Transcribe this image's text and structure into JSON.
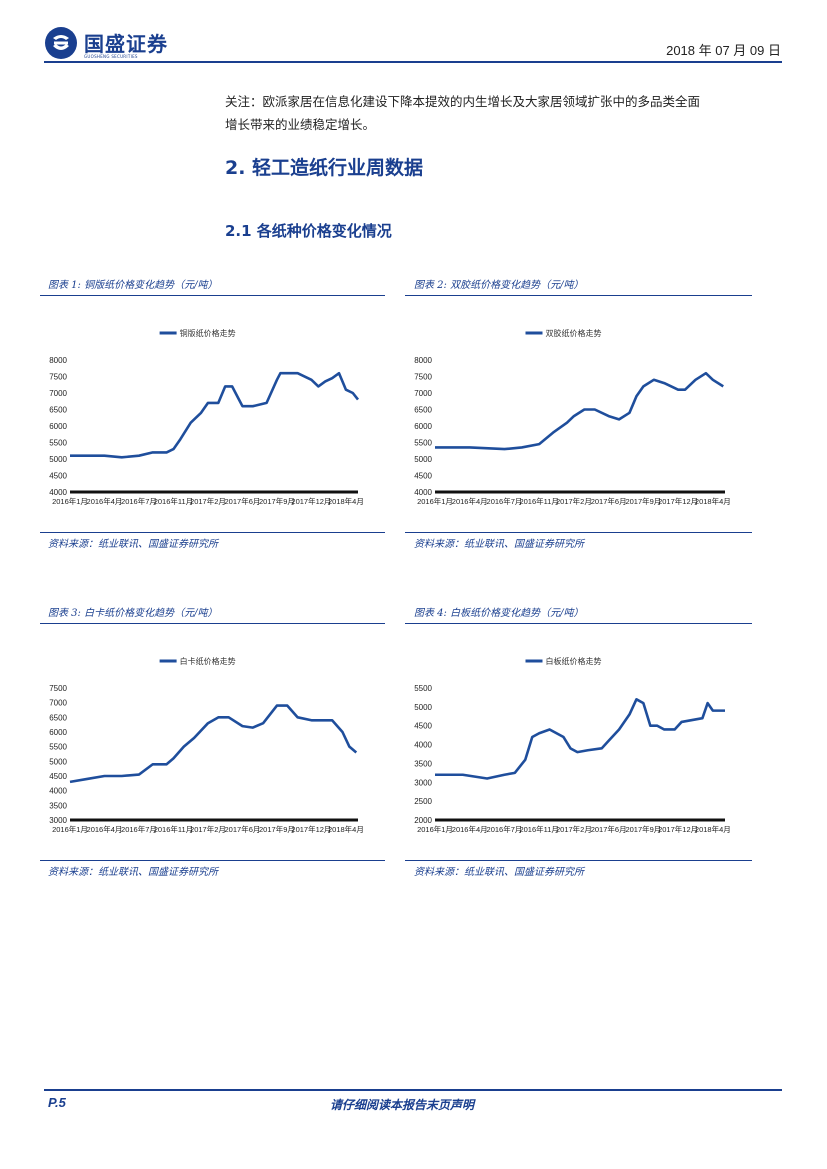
{
  "header": {
    "logo_text": "国盛证券",
    "logo_sub": "GUOSHENG SECURITIES",
    "date": "2018 年 07 月 09 日"
  },
  "intro": {
    "line1": "关注：欧派家居在信息化建设下降本提效的内生增长及大家居领域扩张中的多品类全面",
    "line2": "增长带来的业绩稳定增长。"
  },
  "section": {
    "title": "2.  轻工造纸行业周数据"
  },
  "subsection": {
    "title": "2.1 各纸种价格变化情况"
  },
  "footer": {
    "page": "P.5",
    "note": "请仔细阅读本报告末页声明"
  },
  "chart_data": [
    {
      "type": "line",
      "title": "图表 1:  铜版纸价格变化趋势（元/吨）",
      "legend": "铜版纸价格走势",
      "source": "资料来源：纸业联讯、国盛证券研究所",
      "categories": [
        "2016年1月",
        "2016年4月",
        "2016年7月",
        "2016年11月",
        "2017年2月",
        "2017年6月",
        "2017年9月",
        "2017年12月",
        "2018年4月"
      ],
      "ylim": [
        4000,
        8000
      ],
      "yticks": [
        4000,
        4500,
        5000,
        5500,
        6000,
        6500,
        7000,
        7500,
        8000
      ],
      "series": [
        {
          "name": "铜版纸价格走势",
          "x": [
            0,
            1,
            1.5,
            2,
            2.4,
            2.8,
            3,
            3.2,
            3.5,
            3.8,
            4,
            4.3,
            4.5,
            4.7,
            4.9,
            5,
            5.3,
            5.7,
            6,
            6.1,
            6.3,
            6.6,
            7,
            7.2,
            7.4,
            7.6,
            7.8,
            8,
            8.2,
            8.35
          ],
          "values": [
            5100,
            5100,
            5050,
            5100,
            5200,
            5200,
            5300,
            5600,
            6100,
            6400,
            6700,
            6700,
            7200,
            7200,
            6800,
            6600,
            6600,
            6700,
            7400,
            7600,
            7600,
            7600,
            7400,
            7200,
            7350,
            7450,
            7600,
            7100,
            7000,
            6800
          ]
        }
      ]
    },
    {
      "type": "line",
      "title": "图表 2:  双胶纸价格变化趋势（元/吨）",
      "legend": "双胶纸价格走势",
      "source": "资料来源：纸业联讯、国盛证券研究所",
      "categories": [
        "2016年1月",
        "2016年4月",
        "2016年7月",
        "2016年11月",
        "2017年2月",
        "2017年6月",
        "2017年9月",
        "2017年12月",
        "2018年4月"
      ],
      "ylim": [
        4000,
        8000
      ],
      "yticks": [
        4000,
        4500,
        5000,
        5500,
        6000,
        6500,
        7000,
        7500,
        8000
      ],
      "series": [
        {
          "name": "双胶纸价格走势",
          "x": [
            0,
            1,
            2,
            2.5,
            3,
            3.4,
            3.8,
            4,
            4.3,
            4.6,
            5,
            5.3,
            5.6,
            5.8,
            6,
            6.3,
            6.6,
            7,
            7.2,
            7.5,
            7.8,
            8,
            8.3
          ],
          "values": [
            5350,
            5350,
            5300,
            5350,
            5450,
            5800,
            6100,
            6300,
            6500,
            6500,
            6300,
            6200,
            6400,
            6900,
            7200,
            7400,
            7300,
            7100,
            7100,
            7400,
            7600,
            7400,
            7200
          ]
        }
      ]
    },
    {
      "type": "line",
      "title": "图表 3:  白卡纸价格变化趋势（元/吨）",
      "legend": "白卡纸价格走势",
      "source": "资料来源：纸业联讯、国盛证券研究所",
      "categories": [
        "2016年1月",
        "2016年4月",
        "2016年7月",
        "2016年11月",
        "2017年2月",
        "2017年6月",
        "2017年9月",
        "2017年12月",
        "2018年4月"
      ],
      "ylim": [
        3000,
        7500
      ],
      "yticks": [
        3000,
        3500,
        4000,
        4500,
        5000,
        5500,
        6000,
        6500,
        7000,
        7500
      ],
      "series": [
        {
          "name": "白卡纸价格走势",
          "x": [
            0,
            0.5,
            1,
            1.5,
            2,
            2.4,
            2.8,
            3,
            3.3,
            3.6,
            4,
            4.3,
            4.6,
            5,
            5.3,
            5.6,
            6,
            6.3,
            6.6,
            7,
            7.3,
            7.6,
            7.9,
            8.1,
            8.3
          ],
          "values": [
            4300,
            4400,
            4500,
            4500,
            4550,
            4900,
            4900,
            5100,
            5500,
            5800,
            6300,
            6500,
            6500,
            6200,
            6150,
            6300,
            6900,
            6900,
            6500,
            6400,
            6400,
            6400,
            6000,
            5500,
            5300
          ]
        }
      ]
    },
    {
      "type": "line",
      "title": "图表 4:  白板纸价格变化趋势（元/吨）",
      "legend": "白板纸价格走势",
      "source": "资料来源：纸业联讯、国盛证券研究所",
      "categories": [
        "2016年1月",
        "2016年4月",
        "2016年7月",
        "2016年11月",
        "2017年2月",
        "2017年6月",
        "2017年9月",
        "2017年12月",
        "2018年4月"
      ],
      "ylim": [
        2000,
        5500
      ],
      "yticks": [
        2000,
        2500,
        3000,
        3500,
        4000,
        4500,
        5000,
        5500
      ],
      "series": [
        {
          "name": "白板纸价格走势",
          "x": [
            0,
            0.8,
            1.5,
            2,
            2.3,
            2.6,
            2.8,
            3,
            3.3,
            3.7,
            3.9,
            4.1,
            4.4,
            4.8,
            5,
            5.3,
            5.6,
            5.8,
            6,
            6.2,
            6.4,
            6.6,
            6.9,
            7.1,
            7.4,
            7.7,
            7.85,
            8,
            8.2,
            8.35
          ],
          "values": [
            3200,
            3200,
            3100,
            3200,
            3250,
            3600,
            4200,
            4300,
            4400,
            4200,
            3900,
            3800,
            3850,
            3900,
            4100,
            4400,
            4800,
            5200,
            5100,
            4500,
            4500,
            4400,
            4400,
            4600,
            4650,
            4700,
            5100,
            4900,
            4900,
            4900
          ]
        }
      ]
    }
  ]
}
